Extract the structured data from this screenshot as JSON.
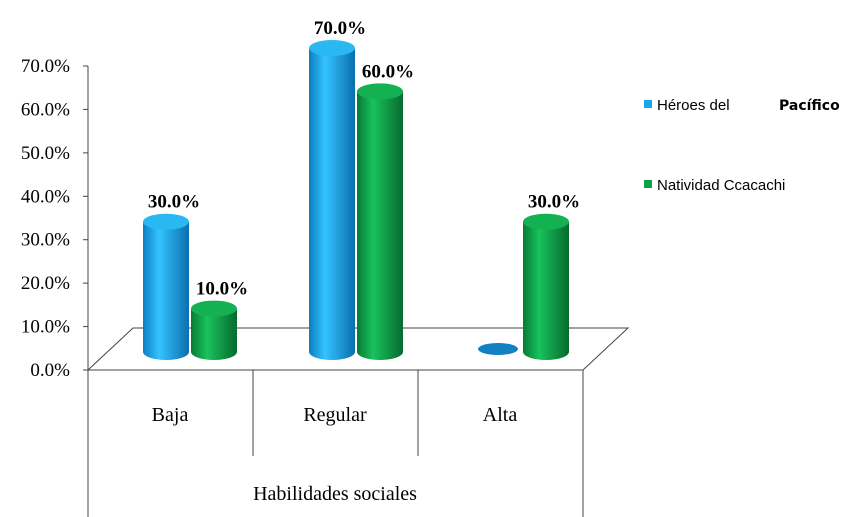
{
  "chart_data": {
    "type": "bar",
    "categories": [
      "Baja",
      "Regular",
      "Alta"
    ],
    "xlabel": "Habilidades sociales",
    "ylabel": "",
    "ylim": [
      0,
      70
    ],
    "yticks": [
      0,
      10,
      20,
      30,
      40,
      50,
      60,
      70
    ],
    "ytick_labels": [
      "0.0%",
      "10.0%",
      "20.0%",
      "30.0%",
      "40.0%",
      "50.0%",
      "60.0%",
      "70.0%"
    ],
    "legend_position": "right",
    "grid": false,
    "series": [
      {
        "name": "Héroes del",
        "name_bold": "Pacífico",
        "color": "#1aa7e8",
        "values": [
          30,
          70,
          0
        ],
        "labels": [
          "30.0%",
          "70.0%",
          ""
        ]
      },
      {
        "name": "Natividad Ccacachi",
        "color": "#0ea04a",
        "values": [
          10,
          60,
          30
        ],
        "labels": [
          "10.0%",
          "60.0%",
          "30.0%"
        ]
      }
    ]
  }
}
